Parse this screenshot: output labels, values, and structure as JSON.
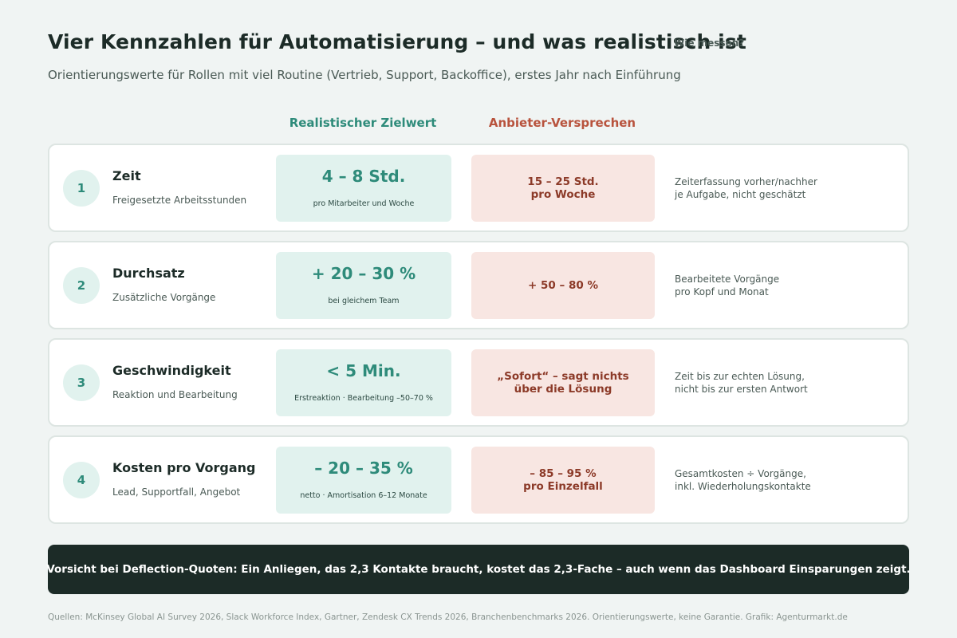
{
  "header": {
    "title": "Vier Kennzahlen für Automatisierung – und was realistisch ist",
    "subtitle": "Orientierungswerte für Rollen mit viel Routine (Vertrieb, Support, Backoffice), erstes Jahr nach Einführung"
  },
  "columns": {
    "target": "Realistischer Zielwert",
    "vendor": "Anbieter-Versprechen",
    "measure": "Wie messen?"
  },
  "rows": [
    {
      "number": "1",
      "name": "Zeit",
      "description": "Freigesetzte Arbeitsstunden",
      "target_value": "4 – 8 Std.",
      "target_note": "pro Mitarbeiter und Woche",
      "vendor_value": "15 – 25 Std.\npro Woche",
      "measure": "Zeiterfassung vorher/nachher\nje Aufgabe, nicht geschätzt"
    },
    {
      "number": "2",
      "name": "Durchsatz",
      "description": "Zusätzliche Vorgänge",
      "target_value": "+ 20 – 30 %",
      "target_note": "bei gleichem Team",
      "vendor_value": "+ 50 – 80 %",
      "measure": "Bearbeitete Vorgänge\npro Kopf und Monat"
    },
    {
      "number": "3",
      "name": "Geschwindigkeit",
      "description": "Reaktion und Bearbeitung",
      "target_value": "< 5 Min.",
      "target_note": "Erstreaktion · Bearbeitung –50–70 %",
      "vendor_value": "„Sofort“ – sagt nichts\nüber die Lösung",
      "measure": "Zeit bis zur echten Lösung,\nnicht bis zur ersten Antwort"
    },
    {
      "number": "4",
      "name": "Kosten pro Vorgang",
      "description": "Lead, Supportfall, Angebot",
      "target_value": "– 20 – 35 %",
      "target_note": "netto · Amortisation 6–12 Monate",
      "vendor_value": "– 85 – 95 %\npro Einzelfall",
      "measure": "Gesamtkosten ÷ Vorgänge,\ninkl. Wiederholungskontakte"
    }
  ],
  "warning": "Vorsicht bei Deflection-Quoten: Ein Anliegen, das 2,3 Kontakte braucht, kostet das 2,3-Fache – auch wenn das Dashboard Einsparungen zeigt.",
  "source": "Quellen: McKinsey Global AI Survey 2026, Slack Workforce Index, Gartner, Zendesk CX Trends 2026, Branchenbenchmarks 2026. Orientierungswerte, keine Garantie. Grafik: Agenturmarkt.de",
  "colors": {
    "background": "#f0f4f3",
    "target_accent": "#2e8b7a",
    "target_fill": "#e1f2ee",
    "vendor_accent": "#b8533d",
    "vendor_fill": "#f8e6e2",
    "dark_banner": "#1c2b27"
  }
}
